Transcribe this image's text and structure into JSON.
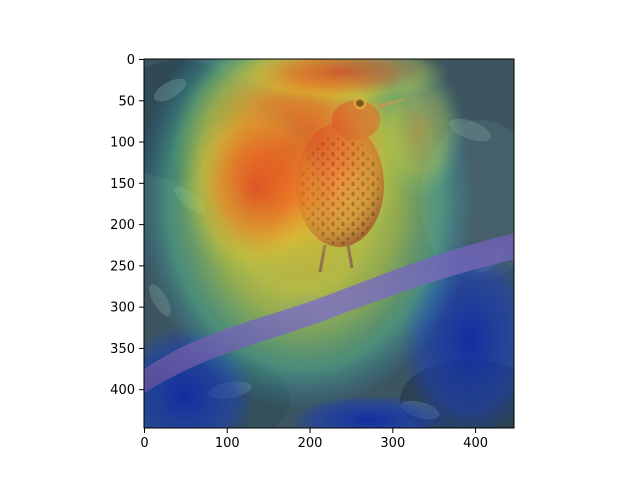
{
  "chart_data": {
    "type": "heatmap",
    "title": "",
    "xlabel": "",
    "ylabel": "",
    "xlim": [
      0,
      447
    ],
    "ylim": [
      447,
      0
    ],
    "x_ticks": [
      0,
      100,
      200,
      300,
      400
    ],
    "y_ticks": [
      0,
      50,
      100,
      150,
      200,
      250,
      300,
      350,
      400
    ],
    "x_tick_labels": [
      "0",
      "100",
      "200",
      "300",
      "400"
    ],
    "y_tick_labels": [
      "0",
      "50",
      "100",
      "150",
      "200",
      "250",
      "300",
      "350",
      "400"
    ],
    "grid": false,
    "legend": "none",
    "colormap": "jet",
    "background_image": "photo of a spotted thrush-like bird perched on a diagonal branch among leaves, overlaid with an attention heatmap",
    "hot_regions": [
      {
        "x": 240,
        "y": 120,
        "rx": 110,
        "ry": 130,
        "intensity": 1.0
      },
      {
        "x": 170,
        "y": 160,
        "rx": 80,
        "ry": 110,
        "intensity": 0.75
      },
      {
        "x": 330,
        "y": 140,
        "rx": 70,
        "ry": 120,
        "intensity": 0.6
      },
      {
        "x": 260,
        "y": 40,
        "rx": 110,
        "ry": 40,
        "intensity": 0.8
      }
    ],
    "cold_regions": [
      {
        "x": 410,
        "y": 330,
        "rx": 60,
        "ry": 90,
        "intensity": 0.1
      },
      {
        "x": 40,
        "y": 380,
        "rx": 60,
        "ry": 80,
        "intensity": 0.1
      },
      {
        "x": 200,
        "y": 310,
        "rx": 40,
        "ry": 20,
        "intensity": 0.05
      }
    ]
  }
}
